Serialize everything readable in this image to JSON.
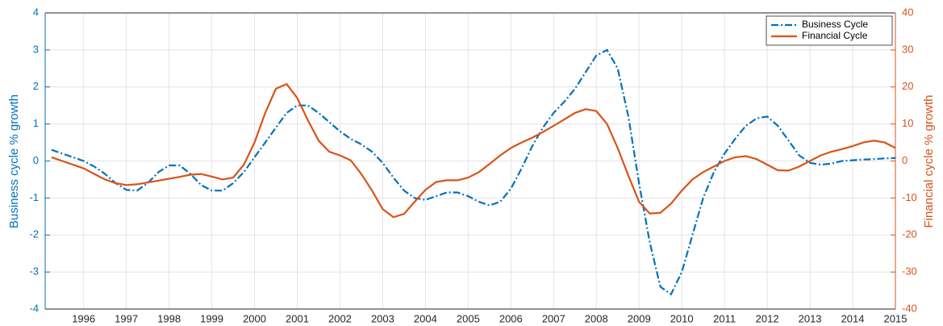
{
  "chart_data": {
    "type": "line",
    "y_label": "Business cycle % growth",
    "y2_label": "Financial cycle % growth",
    "x": [
      1995.25,
      1995.5,
      1995.75,
      1996,
      1996.25,
      1996.5,
      1996.75,
      1997,
      1997.25,
      1997.5,
      1997.75,
      1998,
      1998.25,
      1998.5,
      1998.75,
      1999,
      1999.25,
      1999.5,
      1999.75,
      2000,
      2000.25,
      2000.5,
      2000.75,
      2001,
      2001.25,
      2001.5,
      2001.75,
      2002,
      2002.25,
      2002.5,
      2002.75,
      2003,
      2003.25,
      2003.5,
      2003.75,
      2004,
      2004.25,
      2004.5,
      2004.75,
      2005,
      2005.25,
      2005.5,
      2005.75,
      2006,
      2006.25,
      2006.5,
      2006.75,
      2007,
      2007.25,
      2007.5,
      2007.75,
      2008,
      2008.25,
      2008.5,
      2008.75,
      2009,
      2009.25,
      2009.5,
      2009.75,
      2010,
      2010.25,
      2010.5,
      2010.75,
      2011,
      2011.25,
      2011.5,
      2011.75,
      2012,
      2012.25,
      2012.5,
      2012.75,
      2013,
      2013.25,
      2013.5,
      2013.75,
      2014,
      2014.25,
      2014.5,
      2014.75,
      2015
    ],
    "series": [
      {
        "name": "Business Cycle",
        "color": "#0072BD",
        "dash": "dashdot",
        "axis": "y",
        "values": [
          0.3,
          0.2,
          0.1,
          0.0,
          -0.15,
          -0.35,
          -0.6,
          -0.78,
          -0.8,
          -0.6,
          -0.3,
          -0.12,
          -0.12,
          -0.35,
          -0.65,
          -0.8,
          -0.8,
          -0.6,
          -0.3,
          0.1,
          0.5,
          0.9,
          1.3,
          1.5,
          1.5,
          1.3,
          1.05,
          0.8,
          0.6,
          0.45,
          0.25,
          -0.05,
          -0.45,
          -0.8,
          -1.0,
          -1.05,
          -0.95,
          -0.85,
          -0.85,
          -0.95,
          -1.1,
          -1.2,
          -1.1,
          -0.75,
          -0.2,
          0.4,
          0.9,
          1.3,
          1.6,
          1.95,
          2.4,
          2.85,
          3.0,
          2.5,
          1.2,
          -0.6,
          -2.2,
          -3.4,
          -3.6,
          -3.0,
          -2.0,
          -1.0,
          -0.3,
          0.2,
          0.6,
          0.95,
          1.15,
          1.2,
          0.95,
          0.55,
          0.15,
          -0.05,
          -0.1,
          -0.07,
          0.0,
          0.02,
          0.04,
          0.05,
          0.07,
          0.08
        ]
      },
      {
        "name": "Financial Cycle",
        "color": "#D95319",
        "dash": "solid",
        "axis": "y2",
        "values": [
          1,
          0,
          -1,
          -2,
          -3.5,
          -5,
          -6,
          -6.5,
          -6.3,
          -5.8,
          -5.3,
          -4.8,
          -4.3,
          -3.7,
          -3.5,
          -4.2,
          -5,
          -4.5,
          -1,
          5,
          13,
          19.5,
          20.8,
          17,
          11,
          5.5,
          2.5,
          1.5,
          0.2,
          -3.5,
          -8,
          -13,
          -15.2,
          -14.3,
          -11,
          -7.8,
          -5.7,
          -5.2,
          -5.2,
          -4.5,
          -3,
          -0.8,
          1.5,
          3.5,
          5,
          6.3,
          7.8,
          9.5,
          11.2,
          13,
          14,
          13.5,
          10,
          3.5,
          -4,
          -11,
          -14.2,
          -14,
          -11.5,
          -8,
          -5,
          -3,
          -1.5,
          0,
          1,
          1.3,
          0.5,
          -1,
          -2.5,
          -2.6,
          -1.5,
          0,
          1.5,
          2.5,
          3.2,
          4,
          5,
          5.5,
          5,
          3.5
        ]
      }
    ],
    "xlim": [
      1995.1,
      2015
    ],
    "xticks": [
      1996,
      1997,
      1998,
      1999,
      2000,
      2001,
      2002,
      2003,
      2004,
      2005,
      2006,
      2007,
      2008,
      2009,
      2010,
      2011,
      2012,
      2013,
      2014,
      2015
    ],
    "ylim": [
      -4,
      4
    ],
    "yticks": [
      -4,
      -3,
      -2,
      -1,
      0,
      1,
      2,
      3,
      4
    ],
    "y2lim": [
      -40,
      40
    ],
    "y2ticks": [
      -40,
      -30,
      -20,
      -10,
      0,
      10,
      20,
      30,
      40
    ],
    "grid": true,
    "legend": "upper right",
    "x_tick_color": "#262626"
  }
}
